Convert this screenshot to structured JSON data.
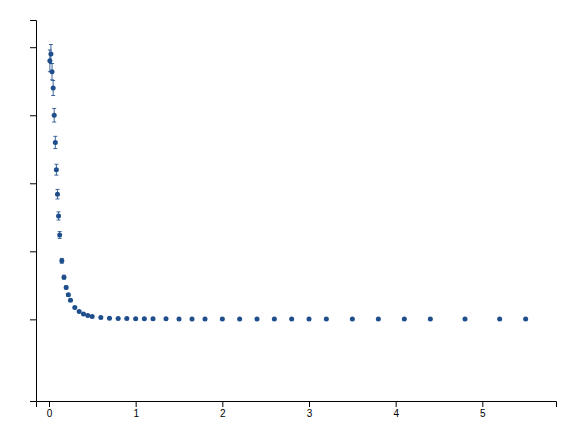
{
  "chart_data": {
    "type": "scatter",
    "x": [
      0.01,
      0.022,
      0.035,
      0.048,
      0.06,
      0.073,
      0.085,
      0.098,
      0.11,
      0.123,
      0.148,
      0.173,
      0.198,
      0.223,
      0.248,
      0.298,
      0.348,
      0.398,
      0.448,
      0.498,
      0.598,
      0.698,
      0.798,
      0.898,
      1,
      1.1,
      1.2,
      1.35,
      1.5,
      1.65,
      1.8,
      2,
      2.2,
      2.4,
      2.6,
      2.8,
      3,
      3.2,
      3.5,
      3.8,
      4.1,
      4.4,
      4.8,
      5.2,
      5.5
    ],
    "values": [
      1900,
      1950,
      1820,
      1700,
      1500,
      1300,
      1100,
      920,
      760,
      620,
      430,
      310,
      235,
      180,
      140,
      88,
      58,
      40,
      28,
      21,
      13,
      9,
      7,
      6,
      5,
      4.5,
      4.2,
      3.8,
      3.5,
      3.3,
      3.2,
      3.05,
      2.95,
      2.85,
      2.8,
      2.75,
      2.72,
      2.7,
      2.68,
      2.65,
      2.72,
      2.75,
      2.8,
      2.65,
      2.68
    ],
    "errors": [
      80,
      70,
      60,
      55,
      50,
      45,
      40,
      35,
      30,
      25,
      18,
      14,
      11,
      9,
      7,
      5,
      3.5,
      2.5,
      2,
      1.5,
      1,
      0.8,
      0.6,
      0.5,
      0.4,
      0.4,
      0.35,
      0.35,
      0.3,
      0.3,
      0.28,
      0.25,
      0.22,
      0.2,
      0.18,
      0.17,
      0.16,
      0.15,
      0.14,
      0.13,
      0.13,
      0.13,
      0.12,
      0.11,
      0.11
    ],
    "color": "#1F4E8C",
    "xlim": [
      -0.15,
      5.85
    ],
    "ylim": [
      -600,
      2200
    ],
    "xticks": [
      0,
      1,
      2,
      3,
      4,
      5
    ],
    "yticks": [
      0,
      500,
      1000,
      1500,
      2000
    ],
    "tick_labels": "x"
  }
}
